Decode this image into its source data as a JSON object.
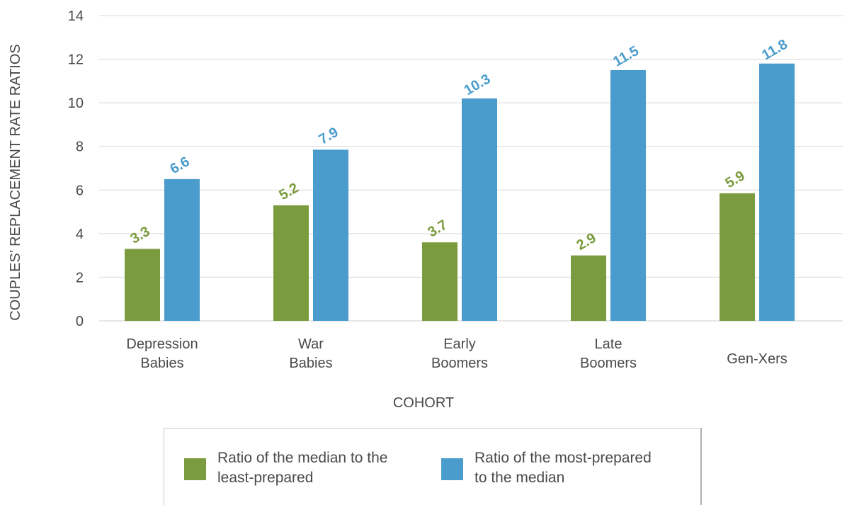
{
  "chart_data": {
    "type": "bar",
    "categories": [
      [
        "Depression",
        "Babies"
      ],
      [
        "War",
        "Babies"
      ],
      [
        "Early",
        "Boomers"
      ],
      [
        "Late",
        "Boomers"
      ],
      [
        "Gen-Xers"
      ]
    ],
    "series": [
      {
        "name": "Ratio of the median to the least-prepared",
        "name_lines": [
          "Ratio of the median to the",
          "least-prepared"
        ],
        "values": [
          3.3,
          5.2,
          3.7,
          2.9,
          5.9
        ],
        "bar_values": [
          3.3,
          5.3,
          3.6,
          3.0,
          5.85
        ],
        "color": "#7a9b3e"
      },
      {
        "name": "Ratio of the most-prepared to the median",
        "name_lines": [
          "Ratio of the most-prepared",
          "to the median"
        ],
        "values": [
          6.6,
          7.9,
          10.3,
          11.5,
          11.8
        ],
        "bar_values": [
          6.5,
          7.85,
          10.2,
          11.5,
          11.8
        ],
        "color": "#4a9ccd"
      }
    ],
    "xlabel": "COHORT",
    "ylabel": "COUPLES’ REPLACEMENT RATE RATIOS",
    "ylim": [
      0,
      14
    ],
    "yticks": [
      0,
      2,
      4,
      6,
      8,
      10,
      12,
      14
    ],
    "grid": "horizontal",
    "legend": "bottom"
  }
}
